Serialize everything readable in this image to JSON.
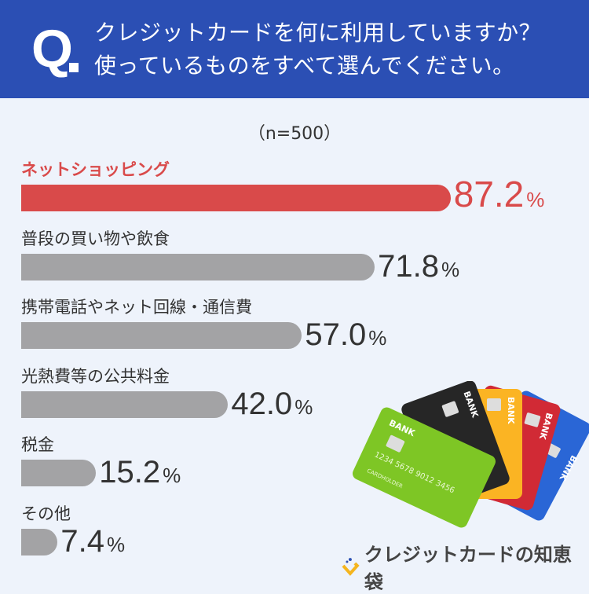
{
  "header": {
    "q_mark": "Q",
    "line1": "クレジットカードを何に利用していますか？",
    "line2": "使っているものをすべて選んでください。",
    "bg_color": "#2b4fb4"
  },
  "sample": "（n=500）",
  "chart_data": {
    "type": "bar",
    "orientation": "horizontal",
    "categories": [
      "ネットショッピング",
      "普段の買い物や飲食",
      "携帯電話やネット回線・通信費",
      "光熱費等の公共料金",
      "税金",
      "その他"
    ],
    "values": [
      87.2,
      71.8,
      57.0,
      42.0,
      15.2,
      7.4
    ],
    "value_labels": [
      "87.2",
      "71.8",
      "57.0",
      "42.0",
      "15.2",
      "7.4"
    ],
    "unit": "%",
    "highlight_index": 0,
    "colors": {
      "highlight": "#d94a4a",
      "default": "#a3a3a5"
    },
    "xlim": [
      0,
      100
    ]
  },
  "illustration": {
    "cards": [
      "BANK",
      "BANK",
      "BANK",
      "BANK",
      "BANK"
    ],
    "card_number": "1234 5678 9012 3456",
    "cardholder": "CARDHOLDER"
  },
  "logo": {
    "text": "クレジットカードの知恵袋"
  }
}
